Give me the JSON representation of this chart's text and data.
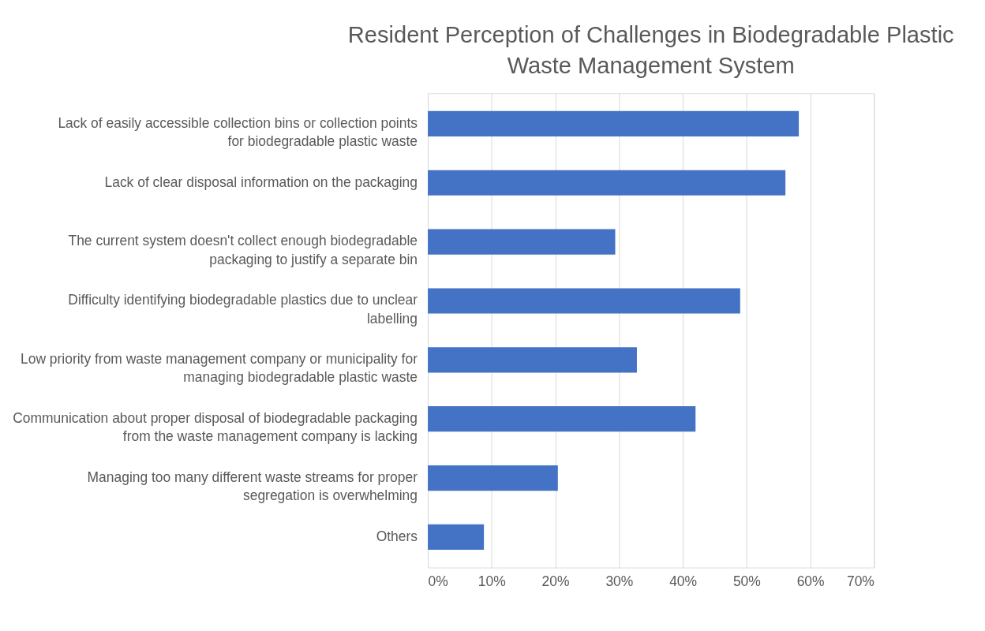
{
  "chart_data": {
    "type": "bar",
    "orientation": "horizontal",
    "title": "Resident Perception of Challenges in Biodegradable Plastic Waste Management System",
    "categories": [
      "Lack of easily accessible collection bins or collection points for biodegradable plastic waste",
      "Lack of clear disposal information on the packaging",
      "The current system doesn't collect enough biodegradable packaging to justify a separate bin",
      "Difficulty identifying biodegradable plastics due to unclear labelling",
      "Low priority from waste management company or municipality for managing biodegradable plastic waste",
      "Communication about proper disposal of biodegradable packaging from the waste management company is lacking",
      "Managing too many different waste streams for proper segregation is overwhelming",
      "Others"
    ],
    "values": [
      58.2,
      56.1,
      29.4,
      49.0,
      32.8,
      42.0,
      20.4,
      8.8
    ],
    "color": "#4472c4",
    "xlim": [
      0,
      70
    ],
    "xticks": [
      {
        "value": 0,
        "label": "0%"
      },
      {
        "value": 10,
        "label": "10%"
      },
      {
        "value": 20,
        "label": "20%"
      },
      {
        "value": 30,
        "label": "30%"
      },
      {
        "value": 40,
        "label": "40%"
      },
      {
        "value": 50,
        "label": "50%"
      },
      {
        "value": 60,
        "label": "60%"
      },
      {
        "value": 70,
        "label": "70%"
      }
    ],
    "grid": "x"
  }
}
